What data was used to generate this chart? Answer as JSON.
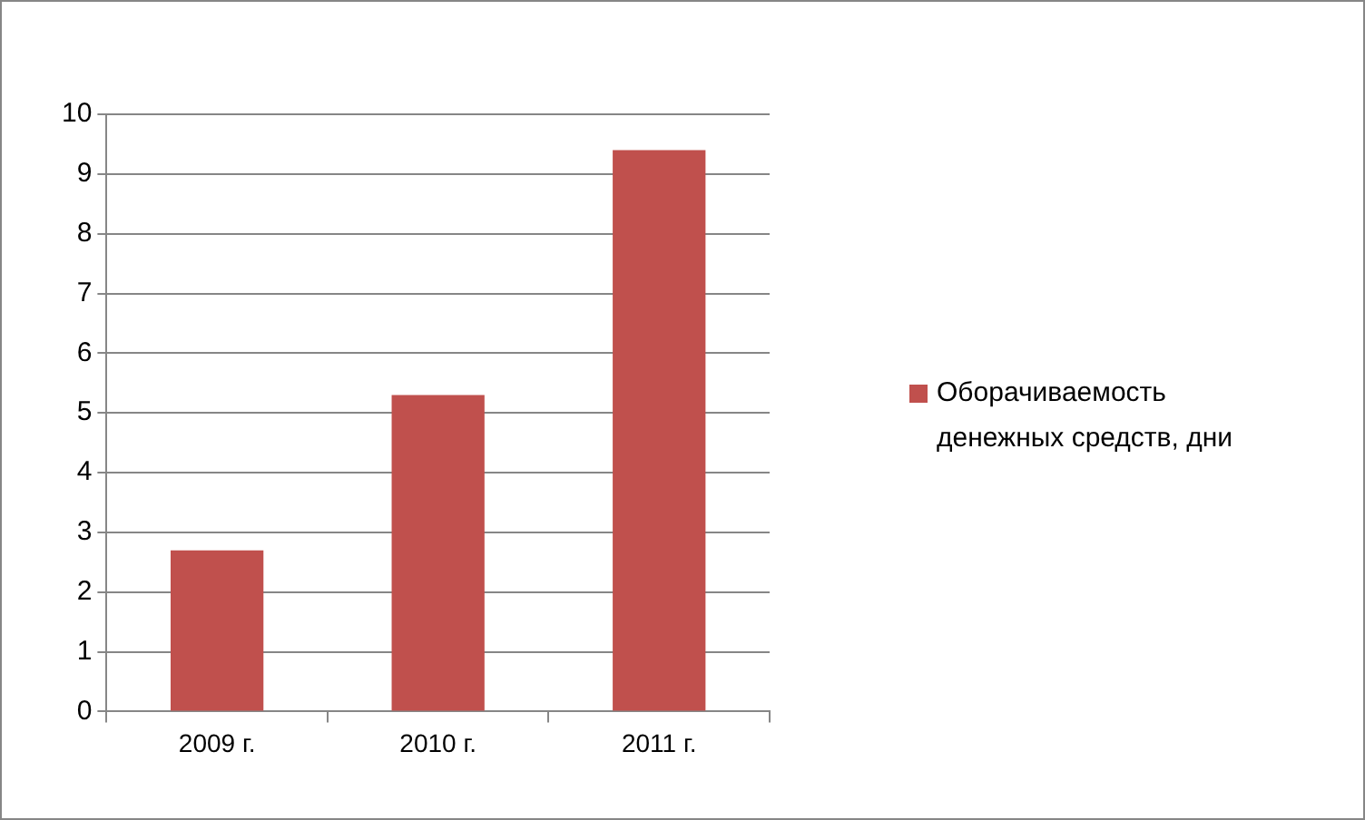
{
  "chart_data": {
    "type": "bar",
    "categories": [
      "2009 г.",
      "2010 г.",
      "2011 г."
    ],
    "series": [
      {
        "name": "Оборачиваемость денежных средств, дни",
        "color": "#c0504d",
        "values": [
          2.7,
          5.3,
          9.4
        ]
      }
    ],
    "ylim": [
      0,
      10
    ],
    "yticks": [
      0,
      1,
      2,
      3,
      4,
      5,
      6,
      7,
      8,
      9,
      10
    ],
    "grid": "y",
    "legend": "right"
  }
}
